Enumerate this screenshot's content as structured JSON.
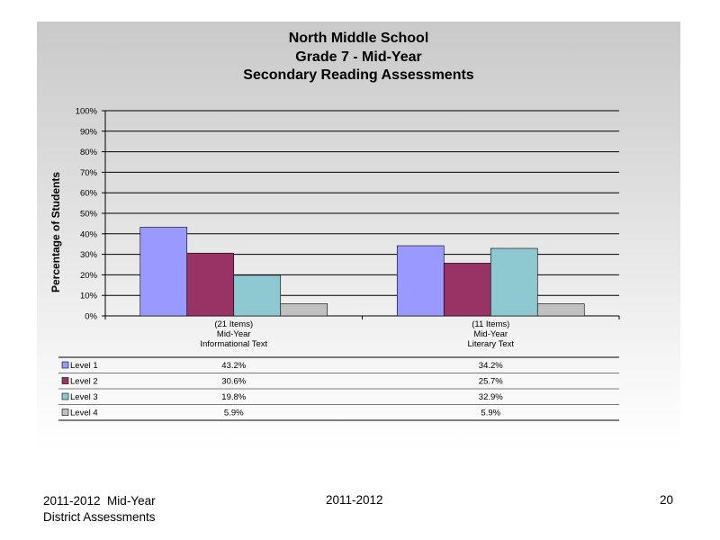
{
  "chart_data": {
    "type": "bar",
    "title_lines": [
      "North Middle School",
      "Grade 7 - Mid-Year",
      "Secondary Reading Assessments"
    ],
    "ylabel": "Percentage of Students",
    "ylim": [
      0,
      100
    ],
    "y_ticks": [
      "0%",
      "10%",
      "20%",
      "30%",
      "40%",
      "50%",
      "60%",
      "70%",
      "80%",
      "90%",
      "100%"
    ],
    "grid": true,
    "categories": [
      [
        "(21 Items)",
        "Mid-Year",
        "Informational Text"
      ],
      [
        "(11 Items)",
        "Mid-Year",
        "Literary Text"
      ]
    ],
    "series": [
      {
        "name": "Level 1",
        "color": "#9999ff",
        "values": [
          43.2,
          34.2
        ],
        "labels": [
          "43.2%",
          "34.2%"
        ]
      },
      {
        "name": "Level 2",
        "color": "#993366",
        "values": [
          30.6,
          25.7
        ],
        "labels": [
          "30.6%",
          "25.7%"
        ]
      },
      {
        "name": "Level 3",
        "color": "#8ec8d0",
        "values": [
          19.8,
          32.9
        ],
        "labels": [
          "19.8%",
          "32.9%"
        ]
      },
      {
        "name": "Level 4",
        "color": "#c0c0c0",
        "values": [
          5.9,
          5.9
        ],
        "labels": [
          "5.9%",
          "5.9%"
        ]
      }
    ],
    "legend": "data-table-below"
  },
  "footer": {
    "left_line1": "2011-2012  Mid-Year",
    "left_line2": "District Assessments",
    "center": "2011-2012",
    "page_number": "20"
  }
}
